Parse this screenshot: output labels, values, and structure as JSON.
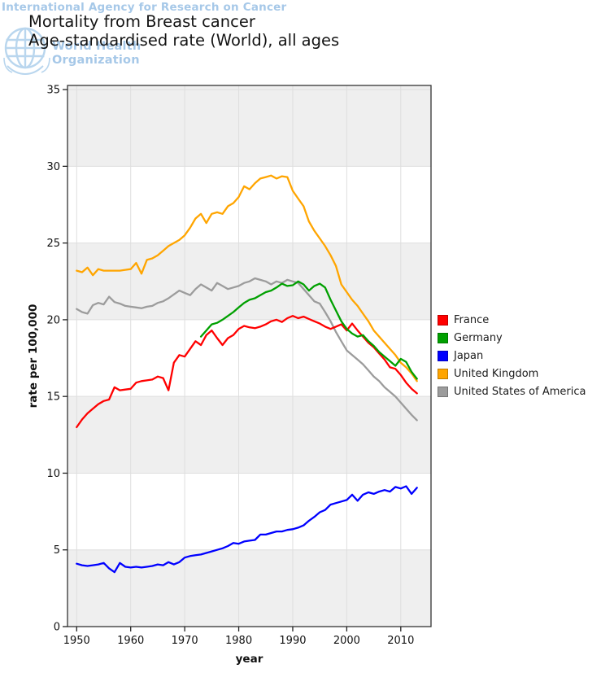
{
  "watermark": {
    "line1": "International Agency for Research on Cancer",
    "logo_line1": "World Health",
    "logo_line2": "Organization",
    "color": "#a6c8e8"
  },
  "header": {
    "title": "Mortality from Breast cancer",
    "subtitle": "Age-standardised rate (World), all ages"
  },
  "chart_data": {
    "type": "line",
    "title": "Mortality from Breast cancer",
    "subtitle": "Age-standardised rate (World), all ages",
    "xlabel": "year",
    "ylabel": "rate per 100,000",
    "x_ticks": [
      1950,
      1960,
      1970,
      1980,
      1990,
      2000,
      2010
    ],
    "y_ticks": [
      0,
      5,
      10,
      15,
      20,
      25,
      30,
      35
    ],
    "x_range": [
      1948.3,
      2015.6
    ],
    "y_range": [
      0,
      35.27
    ],
    "grid": true,
    "band_fill": "#efefef",
    "grid_color": "#dedede",
    "legend_position": "right",
    "series": [
      {
        "name": "France",
        "color": "#ff0000",
        "start_year": 1950,
        "values": [
          13.0,
          13.5,
          13.9,
          14.2,
          14.5,
          14.7,
          14.8,
          15.6,
          15.4,
          15.45,
          15.5,
          15.9,
          16.0,
          16.05,
          16.1,
          16.3,
          16.2,
          15.4,
          17.2,
          17.7,
          17.6,
          18.1,
          18.6,
          18.35,
          19.0,
          19.3,
          18.8,
          18.35,
          18.8,
          19.0,
          19.4,
          19.6,
          19.5,
          19.45,
          19.55,
          19.7,
          19.9,
          20.0,
          19.85,
          20.1,
          20.25,
          20.1,
          20.2,
          20.05,
          19.9,
          19.75,
          19.55,
          19.4,
          19.55,
          19.7,
          19.3,
          19.75,
          19.3,
          18.9,
          18.5,
          18.2,
          17.8,
          17.4,
          16.9,
          16.8,
          16.4,
          15.9,
          15.5,
          15.2
        ]
      },
      {
        "name": "Germany",
        "color": "#00a000",
        "start_year": 1973,
        "values": [
          18.9,
          19.3,
          19.7,
          19.8,
          20.0,
          20.25,
          20.5,
          20.8,
          21.1,
          21.3,
          21.4,
          21.6,
          21.8,
          21.9,
          22.1,
          22.35,
          22.2,
          22.25,
          22.5,
          22.3,
          21.9,
          22.2,
          22.35,
          22.1,
          21.3,
          20.6,
          19.9,
          19.4,
          19.1,
          18.9,
          19.0,
          18.6,
          18.3,
          17.9,
          17.6,
          17.3,
          17.0,
          17.45,
          17.25,
          16.6,
          16.15
        ]
      },
      {
        "name": "Japan",
        "color": "#0000ff",
        "start_year": 1950,
        "values": [
          4.1,
          4.0,
          3.95,
          4.0,
          4.05,
          4.15,
          3.8,
          3.55,
          4.15,
          3.9,
          3.85,
          3.9,
          3.85,
          3.9,
          3.95,
          4.05,
          4.0,
          4.2,
          4.05,
          4.2,
          4.5,
          4.6,
          4.65,
          4.7,
          4.8,
          4.9,
          5.0,
          5.1,
          5.25,
          5.45,
          5.4,
          5.55,
          5.6,
          5.65,
          6.0,
          6.0,
          6.1,
          6.2,
          6.2,
          6.3,
          6.35,
          6.45,
          6.6,
          6.9,
          7.15,
          7.45,
          7.6,
          7.95,
          8.05,
          8.15,
          8.25,
          8.6,
          8.2,
          8.6,
          8.75,
          8.65,
          8.8,
          8.9,
          8.8,
          9.1,
          9.0,
          9.15,
          8.65,
          9.05
        ]
      },
      {
        "name": "United Kingdom",
        "color": "#ffa500",
        "start_year": 1950,
        "values": [
          23.2,
          23.1,
          23.4,
          22.9,
          23.3,
          23.2,
          23.2,
          23.2,
          23.2,
          23.25,
          23.3,
          23.7,
          23.0,
          23.9,
          24.0,
          24.2,
          24.5,
          24.8,
          25.0,
          25.2,
          25.5,
          26.0,
          26.6,
          26.9,
          26.3,
          26.9,
          27.0,
          26.9,
          27.4,
          27.6,
          28.0,
          28.7,
          28.5,
          28.9,
          29.2,
          29.3,
          29.4,
          29.2,
          29.35,
          29.3,
          28.4,
          27.9,
          27.4,
          26.4,
          25.8,
          25.3,
          24.8,
          24.2,
          23.5,
          22.3,
          21.8,
          21.3,
          20.9,
          20.4,
          19.9,
          19.3,
          18.9,
          18.5,
          18.1,
          17.7,
          17.2,
          16.9,
          16.5,
          16.0
        ]
      },
      {
        "name": "United States of America",
        "color": "#9c9c9c",
        "start_year": 1950,
        "values": [
          20.7,
          20.5,
          20.4,
          20.95,
          21.1,
          21.0,
          21.5,
          21.15,
          21.05,
          20.9,
          20.85,
          20.8,
          20.75,
          20.85,
          20.9,
          21.1,
          21.2,
          21.4,
          21.65,
          21.9,
          21.75,
          21.6,
          22.0,
          22.3,
          22.1,
          21.9,
          22.4,
          22.2,
          22.0,
          22.1,
          22.2,
          22.4,
          22.5,
          22.7,
          22.6,
          22.5,
          22.3,
          22.5,
          22.4,
          22.6,
          22.5,
          22.4,
          22.0,
          21.6,
          21.2,
          21.05,
          20.5,
          19.9,
          19.2,
          18.6,
          18.0,
          17.7,
          17.4,
          17.1,
          16.7,
          16.3,
          16.0,
          15.6,
          15.3,
          15.0,
          14.6,
          14.2,
          13.8,
          13.45
        ]
      }
    ]
  }
}
